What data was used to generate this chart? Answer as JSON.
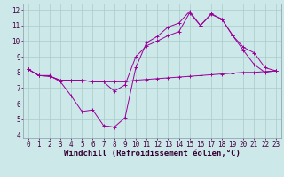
{
  "xlabel": "Windchill (Refroidissement éolien,°C)",
  "background_color": "#cde8e8",
  "line_color": "#990099",
  "grid_color": "#aacccc",
  "xlim": [
    -0.5,
    23.5
  ],
  "ylim": [
    3.8,
    12.4
  ],
  "xticks": [
    0,
    1,
    2,
    3,
    4,
    5,
    6,
    7,
    8,
    9,
    10,
    11,
    12,
    13,
    14,
    15,
    16,
    17,
    18,
    19,
    20,
    21,
    22,
    23
  ],
  "yticks": [
    4,
    5,
    6,
    7,
    8,
    9,
    10,
    11,
    12
  ],
  "line1_x": [
    0,
    1,
    2,
    3,
    4,
    5,
    6,
    7,
    8,
    9,
    10,
    11,
    12,
    13,
    14,
    15,
    16,
    17,
    18,
    19,
    20,
    21,
    22,
    23
  ],
  "line1_y": [
    8.2,
    7.8,
    7.8,
    7.4,
    6.5,
    5.5,
    5.6,
    4.6,
    4.5,
    5.1,
    8.3,
    9.9,
    10.3,
    10.9,
    11.15,
    11.9,
    11.0,
    11.7,
    11.4,
    10.35,
    9.4,
    8.5,
    8.0,
    8.1
  ],
  "line2_x": [
    0,
    1,
    2,
    3,
    4,
    5,
    6,
    7,
    8,
    9,
    10,
    11,
    12,
    13,
    14,
    15,
    16,
    17,
    18,
    19,
    20,
    21,
    22,
    23
  ],
  "line2_y": [
    8.2,
    7.8,
    7.75,
    7.5,
    7.5,
    7.5,
    7.4,
    7.4,
    7.4,
    7.4,
    7.5,
    7.55,
    7.6,
    7.65,
    7.7,
    7.75,
    7.8,
    7.85,
    7.9,
    7.95,
    8.0,
    8.0,
    8.05,
    8.1
  ],
  "line3_x": [
    0,
    1,
    2,
    3,
    4,
    5,
    6,
    7,
    8,
    9,
    10,
    11,
    12,
    13,
    14,
    15,
    16,
    17,
    18,
    19,
    20,
    21,
    22,
    23
  ],
  "line3_y": [
    8.2,
    7.8,
    7.75,
    7.5,
    7.5,
    7.5,
    7.4,
    7.4,
    6.8,
    7.2,
    9.0,
    9.7,
    10.0,
    10.35,
    10.6,
    11.8,
    11.0,
    11.75,
    11.4,
    10.35,
    9.6,
    9.25,
    8.3,
    8.1
  ],
  "tick_fontsize": 5.5,
  "xlabel_fontsize": 6.5
}
